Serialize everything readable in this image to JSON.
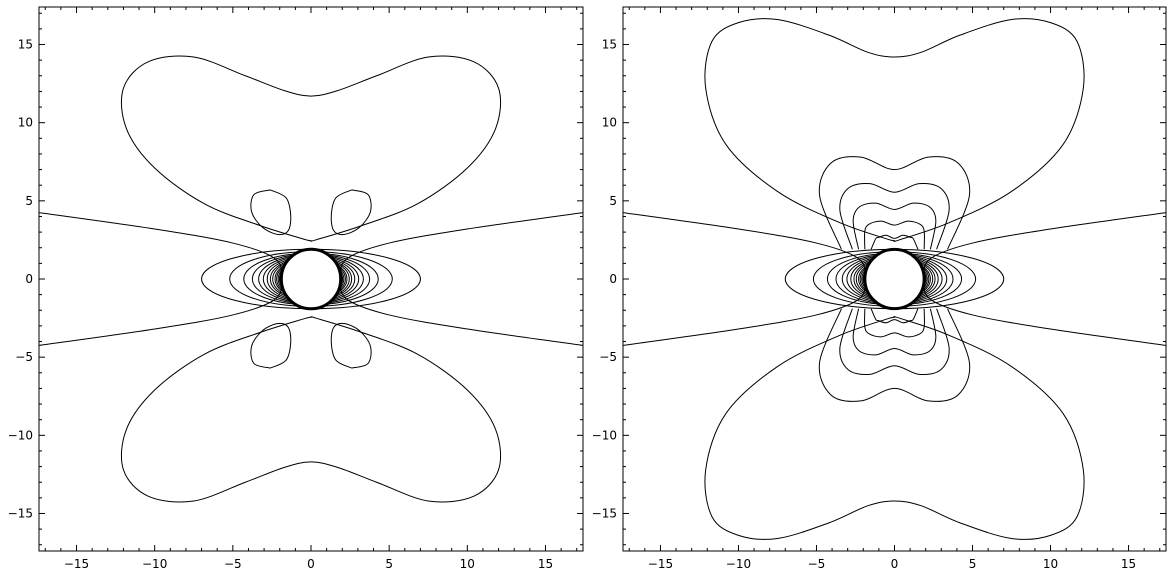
{
  "chart_data": [
    {
      "type": "contour",
      "xlim": [
        -17.4,
        17.4
      ],
      "ylim": [
        -17.4,
        17.4
      ],
      "x_ticks": [
        -15,
        -10,
        -5,
        0,
        5,
        10,
        15
      ],
      "y_ticks": [
        -15,
        -10,
        -5,
        0,
        5,
        10,
        15
      ],
      "x_tick_labels": [
        "−15",
        "−10",
        "−5",
        "0",
        "5",
        "10",
        "15"
      ],
      "y_tick_labels": [
        "−15",
        "−10",
        "−5",
        "0",
        "5",
        "10",
        "15"
      ],
      "tick_label_sides": [
        "left",
        "bottom"
      ],
      "central_disk_radius": 1.9,
      "contours": [
        {
          "kind": "bowtie",
          "points": [
            [
              -17.4,
              4.25
            ],
            [
              -10,
              3.2
            ],
            [
              -5,
              2.3
            ],
            [
              -2.3,
              1.3
            ],
            [
              -1.9,
              0
            ],
            [
              -2.3,
              -1.3
            ],
            [
              -5,
              -2.3
            ],
            [
              -10,
              -3.2
            ],
            [
              -17.4,
              -4.25
            ]
          ]
        },
        {
          "kind": "bowtie",
          "points": [
            [
              17.4,
              4.25
            ],
            [
              10,
              3.2
            ],
            [
              5,
              2.3
            ],
            [
              2.3,
              1.3
            ],
            [
              1.9,
              0
            ],
            [
              2.3,
              -1.3
            ],
            [
              5,
              -2.3
            ],
            [
              10,
              -3.2
            ],
            [
              17.4,
              -4.25
            ]
          ]
        },
        {
          "kind": "lobe",
          "points": [
            [
              -0.3,
              2.5
            ],
            [
              -3.2,
              3.4
            ],
            [
              -6.8,
              4.8
            ],
            [
              -10,
              7.1
            ],
            [
              -11.8,
              9.6
            ],
            [
              -12,
              12.2
            ],
            [
              -10.4,
              13.9
            ],
            [
              -7.5,
              14.2
            ],
            [
              -4.2,
              13
            ],
            [
              -1.7,
              12.05
            ],
            [
              0,
              11.7
            ],
            [
              1.7,
              12.05
            ],
            [
              4.2,
              13
            ],
            [
              7.5,
              14.2
            ],
            [
              10.4,
              13.9
            ],
            [
              12,
              12.2
            ],
            [
              11.8,
              9.6
            ],
            [
              10,
              7.1
            ],
            [
              6.8,
              4.8
            ],
            [
              3.2,
              3.4
            ],
            [
              0.3,
              2.5
            ],
            [
              0,
              2.45
            ],
            [
              -0.3,
              2.5
            ]
          ]
        },
        {
          "kind": "lobe",
          "points": [
            [
              -0.3,
              -2.5
            ],
            [
              -3.2,
              -3.4
            ],
            [
              -6.8,
              -4.8
            ],
            [
              -10,
              -7.1
            ],
            [
              -11.8,
              -9.6
            ],
            [
              -12,
              -12.2
            ],
            [
              -10.4,
              -13.9
            ],
            [
              -7.5,
              -14.2
            ],
            [
              -4.2,
              -13
            ],
            [
              -1.7,
              -12.05
            ],
            [
              0,
              -11.7
            ],
            [
              1.7,
              -12.05
            ],
            [
              4.2,
              -13
            ],
            [
              7.5,
              -14.2
            ],
            [
              10.4,
              -13.9
            ],
            [
              12,
              -12.2
            ],
            [
              11.8,
              -9.6
            ],
            [
              10,
              -7.1
            ],
            [
              6.8,
              -4.8
            ],
            [
              3.2,
              -3.4
            ],
            [
              0.3,
              -2.5
            ],
            [
              0,
              -2.45
            ],
            [
              -0.3,
              -2.5
            ]
          ]
        },
        {
          "kind": "island",
          "points": [
            [
              -2.6,
              5.7
            ],
            [
              -1.6,
              5.2
            ],
            [
              -1.3,
              4.1
            ],
            [
              -1.45,
              3.1
            ],
            [
              -2.1,
              2.85
            ],
            [
              -3.1,
              3.3
            ],
            [
              -3.8,
              4.3
            ],
            [
              -3.65,
              5.4
            ],
            [
              -2.6,
              5.7
            ]
          ]
        },
        {
          "kind": "island",
          "points": [
            [
              2.6,
              5.7
            ],
            [
              1.6,
              5.2
            ],
            [
              1.3,
              4.1
            ],
            [
              1.45,
              3.1
            ],
            [
              2.1,
              2.85
            ],
            [
              3.1,
              3.3
            ],
            [
              3.8,
              4.3
            ],
            [
              3.65,
              5.4
            ],
            [
              2.6,
              5.7
            ]
          ]
        },
        {
          "kind": "island",
          "points": [
            [
              -2.6,
              -5.7
            ],
            [
              -1.6,
              -5.2
            ],
            [
              -1.3,
              -4.1
            ],
            [
              -1.45,
              -3.1
            ],
            [
              -2.1,
              -2.85
            ],
            [
              -3.1,
              -3.3
            ],
            [
              -3.8,
              -4.3
            ],
            [
              -3.65,
              -5.4
            ],
            [
              -2.6,
              -5.7
            ]
          ]
        },
        {
          "kind": "island",
          "points": [
            [
              2.6,
              -5.7
            ],
            [
              1.6,
              -5.2
            ],
            [
              1.3,
              -4.1
            ],
            [
              1.45,
              -3.1
            ],
            [
              2.1,
              -2.85
            ],
            [
              3.1,
              -3.3
            ],
            [
              3.8,
              -4.3
            ],
            [
              3.65,
              -5.4
            ],
            [
              2.6,
              -5.7
            ]
          ]
        }
      ],
      "equatorial_rings": [
        {
          "a": 7.0,
          "b": 1.9
        },
        {
          "a": 5.2,
          "b": 1.75
        },
        {
          "a": 4.3,
          "b": 1.65
        },
        {
          "a": 3.75,
          "b": 1.6
        },
        {
          "a": 3.35,
          "b": 1.55
        },
        {
          "a": 3.05,
          "b": 1.5
        },
        {
          "a": 2.8,
          "b": 1.45
        },
        {
          "a": 2.6,
          "b": 1.4
        },
        {
          "a": 2.45,
          "b": 1.35
        },
        {
          "a": 2.3,
          "b": 1.3
        },
        {
          "a": 2.2,
          "b": 1.25
        },
        {
          "a": 2.1,
          "b": 1.2
        },
        {
          "a": 2.02,
          "b": 1.15
        },
        {
          "a": 1.96,
          "b": 1.1
        }
      ],
      "polar_rings": []
    },
    {
      "type": "contour",
      "xlim": [
        -17.4,
        17.4
      ],
      "ylim": [
        -17.4,
        17.4
      ],
      "x_ticks": [
        -15,
        -10,
        -5,
        0,
        5,
        10,
        15
      ],
      "y_ticks": [
        -15,
        -10,
        -5,
        0,
        5,
        10,
        15
      ],
      "x_tick_labels": [
        "−15",
        "−10",
        "−5",
        "0",
        "5",
        "10",
        "15"
      ],
      "y_tick_labels": [
        "−15",
        "−10",
        "−5",
        "0",
        "5",
        "10",
        "15"
      ],
      "tick_label_sides": [
        "left",
        "bottom"
      ],
      "central_disk_radius": 1.9,
      "contours": [
        {
          "kind": "bowtie",
          "points": [
            [
              -17.4,
              4.25
            ],
            [
              -10,
              3.2
            ],
            [
              -5,
              2.3
            ],
            [
              -2.3,
              1.3
            ],
            [
              -1.9,
              0
            ],
            [
              -2.3,
              -1.3
            ],
            [
              -5,
              -2.3
            ],
            [
              -10,
              -3.2
            ],
            [
              -17.4,
              -4.25
            ]
          ]
        },
        {
          "kind": "bowtie",
          "points": [
            [
              17.4,
              4.25
            ],
            [
              10,
              3.2
            ],
            [
              5,
              2.3
            ],
            [
              2.3,
              1.3
            ],
            [
              1.9,
              0
            ],
            [
              2.3,
              -1.3
            ],
            [
              5,
              -2.3
            ],
            [
              10,
              -3.2
            ],
            [
              17.4,
              -4.25
            ]
          ]
        },
        {
          "kind": "lobe",
          "points": [
            [
              -0.3,
              2.5
            ],
            [
              -3.5,
              3.6
            ],
            [
              -7.5,
              5.6
            ],
            [
              -10.8,
              8.6
            ],
            [
              -12.1,
              12.2
            ],
            [
              -11.7,
              15.2
            ],
            [
              -10,
              16.4
            ],
            [
              -7.5,
              16.6
            ],
            [
              -4.2,
              15.6
            ],
            [
              -1.7,
              14.5
            ],
            [
              0,
              14.2
            ],
            [
              1.7,
              14.5
            ],
            [
              4.2,
              15.6
            ],
            [
              7.5,
              16.6
            ],
            [
              10,
              16.4
            ],
            [
              11.7,
              15.2
            ],
            [
              12.1,
              12.2
            ],
            [
              10.8,
              8.6
            ],
            [
              7.5,
              5.6
            ],
            [
              3.5,
              3.6
            ],
            [
              0.3,
              2.5
            ],
            [
              0,
              2.45
            ],
            [
              -0.3,
              2.5
            ]
          ]
        },
        {
          "kind": "lobe",
          "points": [
            [
              -0.3,
              -2.5
            ],
            [
              -3.5,
              -3.6
            ],
            [
              -7.5,
              -5.6
            ],
            [
              -10.8,
              -8.6
            ],
            [
              -12.1,
              -12.2
            ],
            [
              -11.7,
              -15.2
            ],
            [
              -10,
              -16.4
            ],
            [
              -7.5,
              -16.6
            ],
            [
              -4.2,
              -15.6
            ],
            [
              -1.7,
              -14.5
            ],
            [
              0,
              -14.2
            ],
            [
              1.7,
              -14.5
            ],
            [
              4.2,
              -15.6
            ],
            [
              7.5,
              -16.6
            ],
            [
              10,
              -16.4
            ],
            [
              11.7,
              -15.2
            ],
            [
              12.1,
              -12.2
            ],
            [
              10.8,
              -8.6
            ],
            [
              7.5,
              -5.6
            ],
            [
              3.5,
              -3.6
            ],
            [
              0.3,
              -2.5
            ],
            [
              0,
              -2.45
            ],
            [
              -0.3,
              -2.5
            ]
          ]
        }
      ],
      "equatorial_rings": [
        {
          "a": 7.0,
          "b": 1.9
        },
        {
          "a": 5.2,
          "b": 1.75
        },
        {
          "a": 4.3,
          "b": 1.65
        },
        {
          "a": 3.75,
          "b": 1.6
        },
        {
          "a": 3.35,
          "b": 1.55
        },
        {
          "a": 3.05,
          "b": 1.5
        },
        {
          "a": 2.8,
          "b": 1.45
        },
        {
          "a": 2.6,
          "b": 1.4
        },
        {
          "a": 2.45,
          "b": 1.35
        },
        {
          "a": 2.3,
          "b": 1.3
        },
        {
          "a": 2.2,
          "b": 1.25
        },
        {
          "a": 2.1,
          "b": 1.2
        },
        {
          "a": 2.02,
          "b": 1.15
        },
        {
          "a": 1.96,
          "b": 1.1
        }
      ],
      "polar_rings": [
        {
          "top": 7.8,
          "side": 4.8,
          "neck": 7.0,
          "base_x": 3.4
        },
        {
          "top": 6.1,
          "side": 3.5,
          "neck": 5.55,
          "base_x": 2.7
        },
        {
          "top": 4.85,
          "side": 2.65,
          "neck": 4.45,
          "base_x": 2.3
        },
        {
          "top": 3.7,
          "side": 1.9,
          "neck": 3.45,
          "base_x": 1.9
        },
        {
          "top": 2.8,
          "side": 1.2,
          "neck": 2.6,
          "base_x": 1.5
        }
      ]
    }
  ]
}
